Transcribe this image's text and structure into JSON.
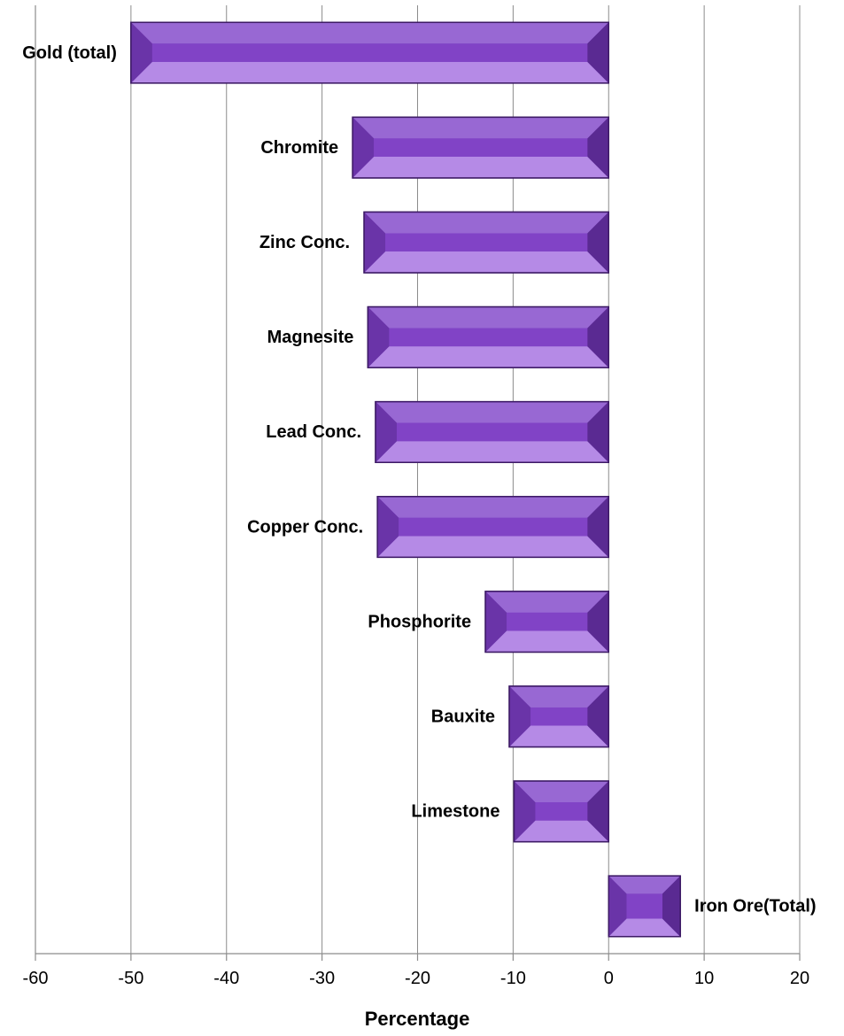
{
  "chart_data": {
    "type": "bar",
    "orientation": "horizontal",
    "title": "",
    "xlabel": "Percentage",
    "ylabel": "",
    "xlim": [
      -60,
      20
    ],
    "xticks": [
      -60,
      -50,
      -40,
      -30,
      -20,
      -10,
      0,
      10,
      20
    ],
    "grid": "vertical",
    "legend": "none",
    "bar_color": "#7d3fbf",
    "categories": [
      "Gold (total)",
      "Chromite",
      "Zinc Conc.",
      "Magnesite",
      "Lead Conc.",
      "Copper Conc.",
      "Phosphorite",
      "Bauxite",
      "Limestone",
      "Iron Ore(Total)"
    ],
    "values": [
      -50,
      -26.8,
      -25.6,
      -25.2,
      -24.4,
      -24.2,
      -12.9,
      -10.4,
      -9.9,
      7.5
    ]
  }
}
